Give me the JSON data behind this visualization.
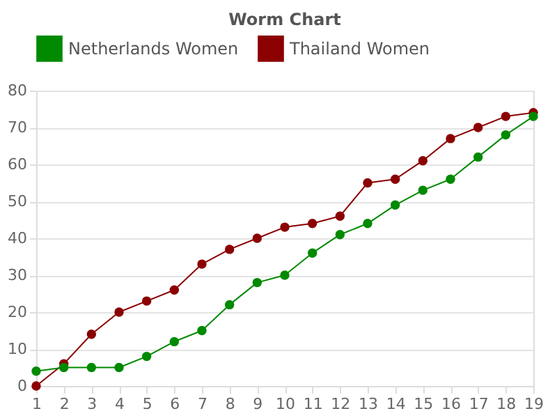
{
  "chart_data": {
    "type": "line",
    "title": "Worm Chart",
    "x": [
      1,
      2,
      3,
      4,
      5,
      6,
      7,
      8,
      9,
      10,
      11,
      12,
      13,
      14,
      15,
      16,
      17,
      18,
      19
    ],
    "xlim": [
      1,
      19
    ],
    "xticks": [
      1,
      2,
      3,
      4,
      5,
      6,
      7,
      8,
      9,
      10,
      11,
      12,
      13,
      14,
      15,
      16,
      17,
      18,
      19
    ],
    "ylim": [
      0,
      80
    ],
    "yticks": [
      0,
      10,
      20,
      30,
      40,
      50,
      60,
      70,
      80
    ],
    "grid": "y",
    "legend": "top",
    "marker": "circle",
    "line_style": "solid",
    "series": [
      {
        "name": "Netherlands Women",
        "color": "#008a00",
        "values": [
          4,
          5,
          5,
          5,
          8,
          12,
          15,
          22,
          28,
          30,
          36,
          41,
          44,
          49,
          53,
          56,
          62,
          68,
          73
        ]
      },
      {
        "name": "Thailand Women",
        "color": "#8b0000",
        "values": [
          0,
          6,
          14,
          20,
          23,
          26,
          33,
          37,
          40,
          43,
          44,
          46,
          55,
          56,
          61,
          67,
          70,
          73,
          74
        ]
      }
    ]
  }
}
